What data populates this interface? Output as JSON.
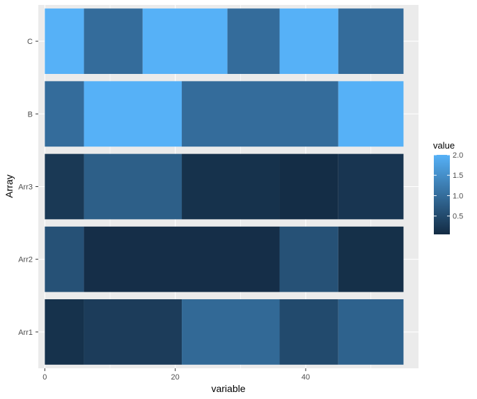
{
  "chart_data": {
    "type": "heatmap",
    "xlabel": "variable",
    "ylabel": "Array",
    "xlim": [
      -1,
      57.3
    ],
    "x_ticks": [
      0,
      20,
      40
    ],
    "x_tick_labels": [
      "0",
      "20",
      "40"
    ],
    "x_minor_ticks": [
      10,
      30,
      50
    ],
    "categories": [
      "Arr1",
      "Arr2",
      "Arr3",
      "B",
      "C"
    ],
    "rows": [
      {
        "name": "Arr1",
        "segments": [
          {
            "x_start": 0,
            "x_end": 6,
            "value": 0.15
          },
          {
            "x_start": 6,
            "x_end": 21,
            "value": 0.3
          },
          {
            "x_start": 21,
            "x_end": 36,
            "value": 0.95
          },
          {
            "x_start": 36,
            "x_end": 45,
            "value": 0.5
          },
          {
            "x_start": 45,
            "x_end": 55,
            "value": 0.85
          }
        ]
      },
      {
        "name": "Arr2",
        "segments": [
          {
            "x_start": 0,
            "x_end": 6,
            "value": 0.6
          },
          {
            "x_start": 6,
            "x_end": 36,
            "value": 0.1
          },
          {
            "x_start": 36,
            "x_end": 45,
            "value": 0.6
          },
          {
            "x_start": 45,
            "x_end": 55,
            "value": 0.12
          }
        ]
      },
      {
        "name": "Arr3",
        "segments": [
          {
            "x_start": 0,
            "x_end": 6,
            "value": 0.25
          },
          {
            "x_start": 6,
            "x_end": 21,
            "value": 0.8
          },
          {
            "x_start": 21,
            "x_end": 36,
            "value": 0.15
          },
          {
            "x_start": 36,
            "x_end": 45,
            "value": 0.08
          },
          {
            "x_start": 45,
            "x_end": 55,
            "value": 0.2
          }
        ]
      },
      {
        "name": "B",
        "segments": [
          {
            "x_start": 0,
            "x_end": 6,
            "value": 1.0
          },
          {
            "x_start": 6,
            "x_end": 21,
            "value": 2.0
          },
          {
            "x_start": 21,
            "x_end": 45,
            "value": 1.0
          },
          {
            "x_start": 45,
            "x_end": 55,
            "value": 2.0
          }
        ]
      },
      {
        "name": "C",
        "segments": [
          {
            "x_start": 0,
            "x_end": 6,
            "value": 2.0
          },
          {
            "x_start": 6,
            "x_end": 15,
            "value": 1.0
          },
          {
            "x_start": 15,
            "x_end": 28,
            "value": 2.0
          },
          {
            "x_start": 28,
            "x_end": 36,
            "value": 1.0
          },
          {
            "x_start": 36,
            "x_end": 45,
            "value": 2.0
          },
          {
            "x_start": 45,
            "x_end": 55,
            "value": 1.0
          }
        ]
      }
    ],
    "legend": {
      "title": "value",
      "position": "right",
      "min": 0.05,
      "max": 2.0,
      "breaks": [
        0.5,
        1.0,
        1.5,
        2.0
      ],
      "break_labels": [
        "0.5",
        "1.0",
        "1.5",
        "2.0"
      ]
    },
    "color_scale": {
      "low": "#132B43",
      "high": "#56B1F7"
    },
    "panel_background": "#EBEBEB",
    "grid": true
  }
}
